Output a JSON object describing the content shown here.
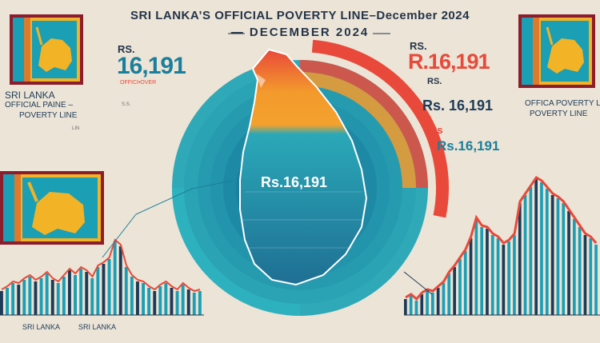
{
  "header": {
    "title_line1": "SRI LANKA’S OFFICIAL POVERTY LINE–December 2024",
    "title_line2": "— DECEMBER 2024"
  },
  "left": {
    "rs_small": "RS.",
    "big_value": "16,191",
    "official_label": "OFFICI•OVER",
    "sri_lanka": "SRI LANKA",
    "official_line": "OFFICIAL  PAINE –",
    "poverty_line": "POVERTY LINE",
    "tiny1": "S.S.",
    "tiny2": "LIN",
    "axis_labels": [
      "SRI LANKA",
      "SRI LANKA"
    ]
  },
  "center": {
    "value": "Rs.16,191"
  },
  "right": {
    "rs_small": "RS.",
    "big_value": "R.16,191",
    "rs_small2": "RS.",
    "mid_value": "Rs. 16,191",
    "rs_red": "Rs",
    "teal_value": "Rs.16,191",
    "official_line": "OFFICA POVERTY LINE",
    "poverty_line": "POVERTY LINE"
  },
  "colors": {
    "background": "#ece4d6",
    "teal": "#1a9fb5",
    "navy": "#1d3b58",
    "red": "#e8493a",
    "orange": "#f39a2c",
    "flag_yellow": "#f2b327",
    "flag_maroon": "#8b1d2c"
  },
  "icons": {
    "flag": "sri-lanka-lion-flag-icon",
    "map": "sri-lanka-island-icon"
  }
}
